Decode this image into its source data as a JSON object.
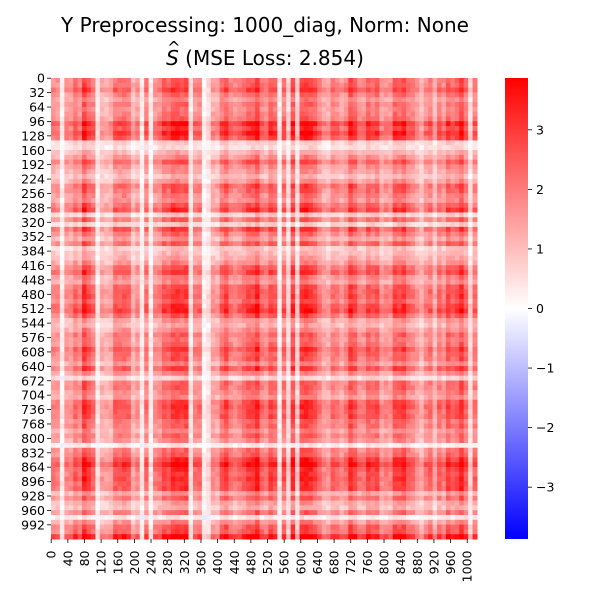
{
  "chart_data": {
    "type": "heatmap",
    "title_line1": "Y Preprocessing: 1000_diag, Norm: None",
    "title_line2_symbol": "S",
    "title_line2_rest": " (MSE Loss: 2.854)",
    "matrix_size": 1024,
    "y_tick_labels": [
      "0",
      "32",
      "64",
      "96",
      "128",
      "160",
      "192",
      "224",
      "256",
      "288",
      "320",
      "352",
      "384",
      "416",
      "448",
      "480",
      "512",
      "544",
      "576",
      "608",
      "640",
      "672",
      "704",
      "736",
      "768",
      "800",
      "832",
      "864",
      "896",
      "928",
      "960",
      "992"
    ],
    "x_tick_labels": [
      "0",
      "40",
      "80",
      "120",
      "160",
      "200",
      "240",
      "280",
      "320",
      "360",
      "400",
      "440",
      "480",
      "520",
      "560",
      "600",
      "640",
      "680",
      "720",
      "760",
      "800",
      "840",
      "880",
      "920",
      "960",
      "1000"
    ],
    "x_tick_step": 40,
    "y_tick_step": 32,
    "colorbar": {
      "colormap": "bwr",
      "vmin": -3.87,
      "vmax": 3.87,
      "ticks": [
        -3,
        -2,
        -1,
        0,
        1,
        2,
        3
      ],
      "tick_labels": [
        "−3",
        "−2",
        "−1",
        "0",
        "1",
        "2",
        "3"
      ]
    },
    "colors": {
      "low": "#0000ff",
      "mid": "#ffffff",
      "high": "#ff0000"
    }
  }
}
